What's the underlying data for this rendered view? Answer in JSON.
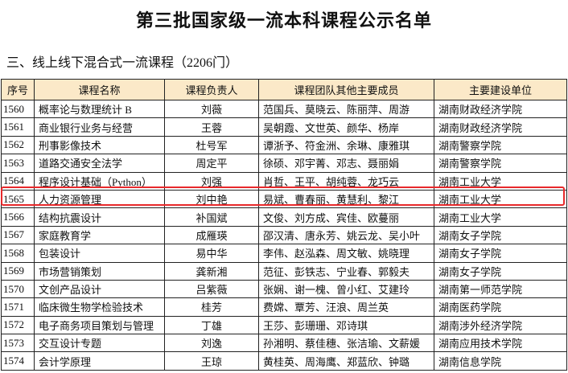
{
  "title": "第三批国家级一流本科课程公示名单",
  "section": "三、线上线下混合式一流课程（2206门）",
  "headers": [
    "序号",
    "课程名称",
    "课程负责人",
    "课程团队其他主要成员",
    "主要建设单位"
  ],
  "rows": [
    [
      "1560",
      "概率论与数理统计 B",
      "刘薇",
      "范国兵、莫晓云、陈丽萍、周游",
      "湖南财政经济学院"
    ],
    [
      "1561",
      "商业银行业务与经营",
      "王蓉",
      "吴朝霞、文世英、颜华、杨岸",
      "湖南财政经济学院"
    ],
    [
      "1562",
      "刑事影像技术",
      "杜号军",
      "谭浙予、符金洲、余琳、康雅琪",
      "湖南警察学院"
    ],
    [
      "1563",
      "道路交通安全法学",
      "周定平",
      "徐硕、邓宇菁、邓志、聂丽娟",
      "湖南警察学院"
    ],
    [
      "1564",
      "程序设计基础（Python）",
      "刘强",
      "肖哲、王平、胡纯蓉、龙巧云",
      "湖南工业大学"
    ],
    [
      "1565",
      "人力资源管理",
      "刘中艳",
      "易斌、曹春丽、黄慧利、黎江",
      "湖南工业大学"
    ],
    [
      "1566",
      "结构抗震设计",
      "补国斌",
      "文俊、刘方成、宾佳、欧蔓丽",
      "湖南工业大学"
    ],
    [
      "1567",
      "家庭教育学",
      "成雁瑛",
      "邵汉清、唐永芳、姚云龙、吴小叶",
      "湖南女子学院"
    ],
    [
      "1568",
      "包装设计",
      "易中华",
      "李伟、赵泓森、周文敏、姚晓理",
      "湖南女子学院"
    ],
    [
      "1569",
      "市场营销策划",
      "龚新湘",
      "范征、彭铁志、宁业春、郭毅夫",
      "湖南女子学院"
    ],
    [
      "1570",
      "文创产品设计",
      "吕紫薇",
      "张娴、谢一槐、曾小红、艾建玲",
      "湖南第一师范学院"
    ],
    [
      "1571",
      "临床微生物学检验技术",
      "桂芳",
      "费嫦、覃芳、汪浪、周兰英",
      "湖南医药学院"
    ],
    [
      "1572",
      "电子商务项目策划与管理",
      "丁雄",
      "王莎、彭珊珊、邓诗琪",
      "湖南涉外经济学院"
    ],
    [
      "1573",
      "交互设计专题",
      "刘逸",
      "孙湘明、蔡佳穗、张洁瑜、文薪媛",
      "湖南应用技术学院"
    ],
    [
      "1574",
      "会计学原理",
      "王琼",
      "黄桂英、周海鹰、郑蓝欣、钟璐",
      "湖南信息学院"
    ]
  ],
  "highlight_color": "#e8292b"
}
